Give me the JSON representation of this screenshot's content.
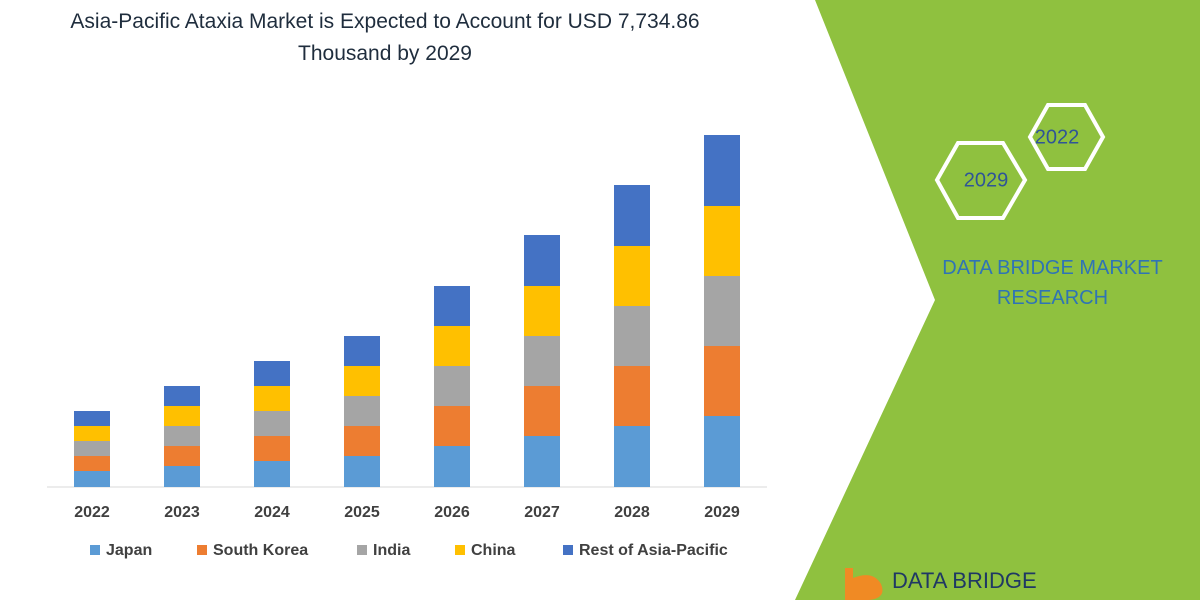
{
  "chart_data": {
    "type": "stacked_bar",
    "title": "Asia-Pacific Ataxia Market is Expected to Account for USD 7,734.86 Thousand by 2029",
    "categories": [
      "2022",
      "2023",
      "2024",
      "2025",
      "2026",
      "2027",
      "2028",
      "2029"
    ],
    "series": [
      {
        "name": "Japan",
        "color": "#5b9bd5",
        "values": [
          16,
          21,
          26,
          31,
          41,
          51,
          61,
          71
        ]
      },
      {
        "name": "South Korea",
        "color": "#ed7d31",
        "values": [
          15,
          20,
          25,
          30,
          40,
          50,
          60,
          70
        ]
      },
      {
        "name": "India",
        "color": "#a5a5a5",
        "values": [
          15,
          20,
          25,
          30,
          40,
          50,
          60,
          70
        ]
      },
      {
        "name": "China",
        "color": "#ffc000",
        "values": [
          15,
          20,
          25,
          30,
          40,
          50,
          60,
          70
        ]
      },
      {
        "name": "Rest of Asia-Pacific",
        "color": "#4472c4",
        "values": [
          15,
          20,
          25,
          30,
          40,
          51,
          61,
          71
        ]
      }
    ]
  },
  "branding": {
    "hex_labels": [
      "2022",
      "2029"
    ],
    "name": "DATA BRIDGE MARKET RESEARCH",
    "logo": "DATA BRIDGE"
  }
}
